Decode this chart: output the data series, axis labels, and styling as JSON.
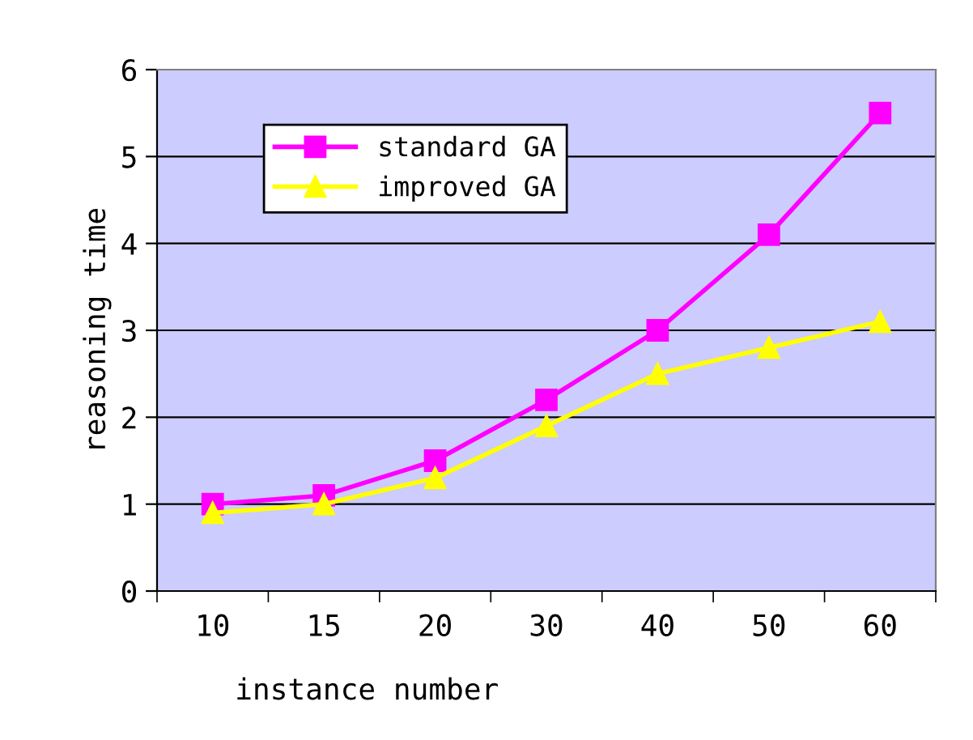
{
  "chart_data": {
    "type": "line",
    "xlabel": "instance number",
    "ylabel": "reasoning time",
    "categories": [
      "10",
      "15",
      "20",
      "30",
      "40",
      "50",
      "60"
    ],
    "series": [
      {
        "name": "standard GA",
        "color": "#ff00ff",
        "marker": "square",
        "values": [
          1.0,
          1.1,
          1.5,
          2.2,
          3.0,
          4.1,
          5.5
        ]
      },
      {
        "name": "improved GA",
        "color": "#ffff00",
        "marker": "triangle",
        "values": [
          0.9,
          1.0,
          1.3,
          1.9,
          2.5,
          2.8,
          3.1
        ]
      }
    ],
    "ylim": [
      0,
      6
    ],
    "yticks": [
      0,
      1,
      2,
      3,
      4,
      5,
      6
    ],
    "grid": "y",
    "legend": "top left",
    "line_style": "solid"
  }
}
